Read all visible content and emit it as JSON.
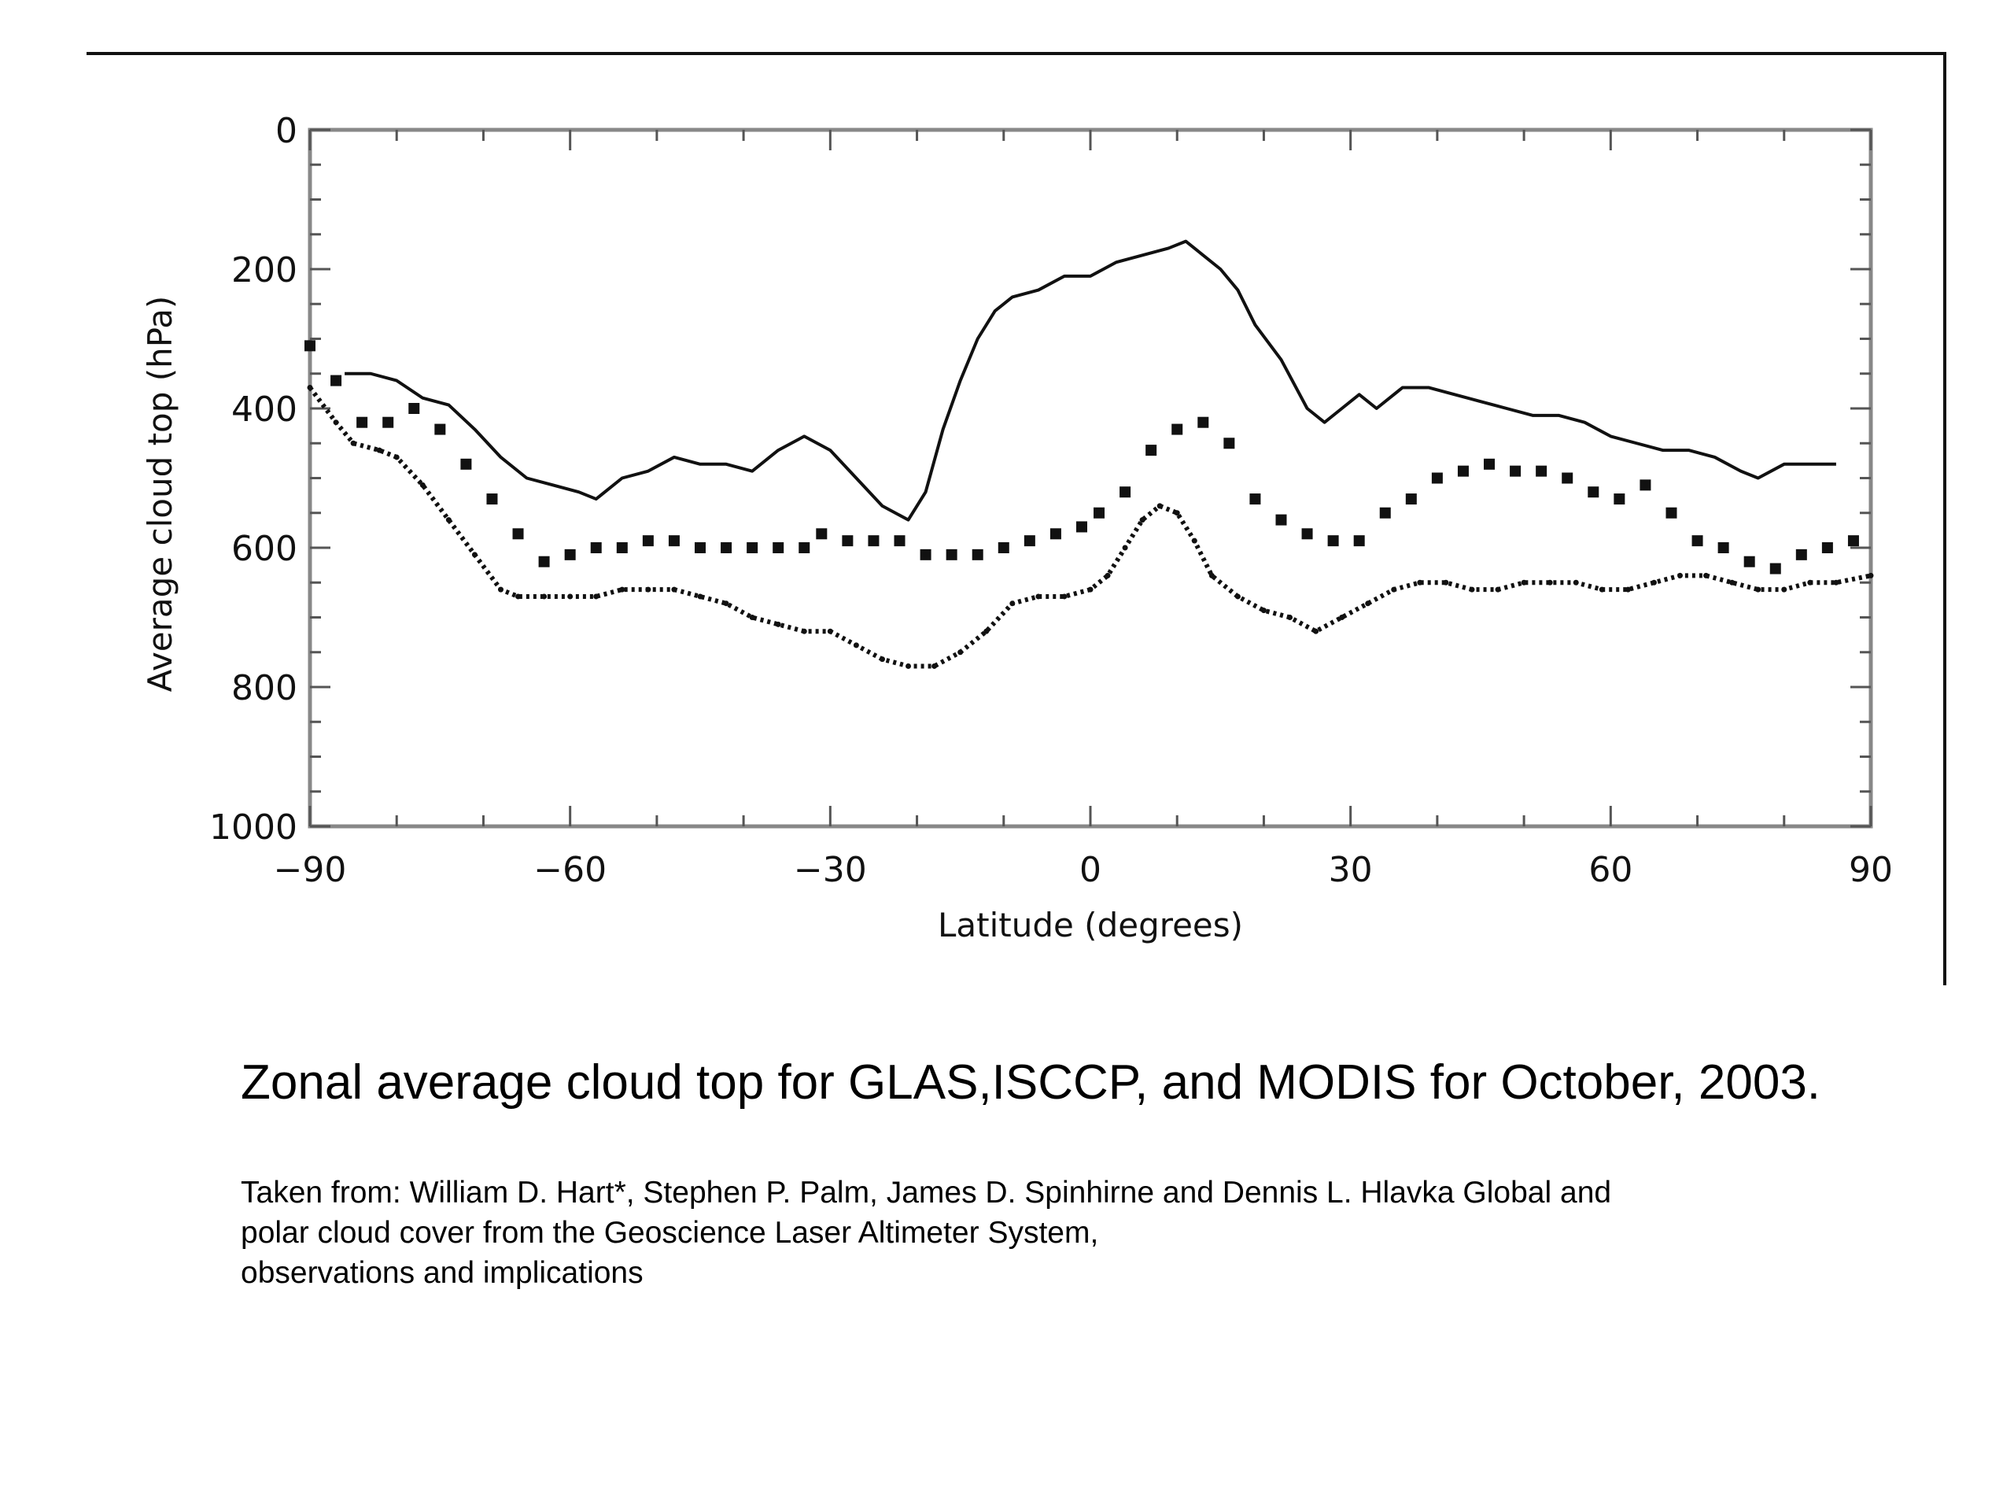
{
  "chart_data": {
    "type": "line",
    "xlabel": "Latitude (degrees)",
    "ylabel": "Average cloud top (hPa)",
    "xlim": [
      -90,
      90
    ],
    "ylim": [
      0,
      1000
    ],
    "y_inverted": true,
    "xticks": [
      -90,
      -60,
      -30,
      0,
      30,
      60,
      90
    ],
    "yticks": [
      0,
      200,
      400,
      600,
      800,
      1000
    ],
    "grid": false,
    "legend": "none",
    "series": [
      {
        "style": "solid",
        "x": [
          -86,
          -83,
          -80,
          -77,
          -74,
          -71,
          -68,
          -65,
          -62,
          -59,
          -57,
          -54,
          -51,
          -48,
          -45,
          -42,
          -39,
          -36,
          -33,
          -30,
          -27,
          -24,
          -21,
          -19,
          -17,
          -15,
          -13,
          -11,
          -9,
          -6,
          -3,
          0,
          3,
          6,
          9,
          11,
          13,
          15,
          17,
          19,
          22,
          25,
          27,
          29,
          31,
          33,
          36,
          39,
          42,
          45,
          48,
          51,
          54,
          57,
          60,
          63,
          66,
          69,
          72,
          75,
          77,
          80,
          83,
          86
        ],
        "y": [
          350,
          350,
          360,
          385,
          395,
          430,
          470,
          500,
          510,
          520,
          530,
          500,
          490,
          470,
          480,
          480,
          490,
          460,
          440,
          460,
          500,
          540,
          560,
          520,
          430,
          360,
          300,
          260,
          240,
          230,
          210,
          210,
          190,
          180,
          170,
          160,
          180,
          200,
          230,
          280,
          330,
          400,
          420,
          400,
          380,
          400,
          370,
          370,
          380,
          390,
          400,
          410,
          410,
          420,
          440,
          450,
          460,
          460,
          470,
          490,
          500,
          480,
          480,
          480
        ]
      },
      {
        "style": "square-markers",
        "x": [
          -90,
          -87,
          -84,
          -81,
          -78,
          -75,
          -72,
          -69,
          -66,
          -63,
          -60,
          -57,
          -54,
          -51,
          -48,
          -45,
          -42,
          -39,
          -36,
          -33,
          -31,
          -28,
          -25,
          -22,
          -19,
          -16,
          -13,
          -10,
          -7,
          -4,
          -1,
          1,
          4,
          7,
          10,
          13,
          16,
          19,
          22,
          25,
          28,
          31,
          34,
          37,
          40,
          43,
          46,
          49,
          52,
          55,
          58,
          61,
          64,
          67,
          70,
          73,
          76,
          79,
          82,
          85,
          88
        ],
        "y": [
          310,
          360,
          420,
          420,
          400,
          430,
          480,
          530,
          580,
          620,
          610,
          600,
          600,
          590,
          590,
          600,
          600,
          600,
          600,
          600,
          580,
          590,
          590,
          590,
          610,
          610,
          610,
          600,
          590,
          580,
          570,
          550,
          520,
          460,
          430,
          420,
          450,
          530,
          560,
          580,
          590,
          590,
          550,
          530,
          500,
          490,
          480,
          490,
          490,
          500,
          520,
          530,
          510,
          550,
          590,
          600,
          620,
          630,
          610,
          600,
          590
        ]
      },
      {
        "style": "dotted",
        "x": [
          -90,
          -87,
          -85,
          -82,
          -80,
          -77,
          -74,
          -71,
          -68,
          -66,
          -63,
          -60,
          -57,
          -54,
          -51,
          -48,
          -45,
          -42,
          -39,
          -36,
          -33,
          -30,
          -27,
          -24,
          -21,
          -18,
          -15,
          -12,
          -9,
          -6,
          -3,
          0,
          2,
          4,
          6,
          8,
          10,
          12,
          14,
          17,
          20,
          23,
          26,
          29,
          32,
          35,
          38,
          41,
          44,
          47,
          50,
          53,
          56,
          59,
          62,
          65,
          68,
          71,
          74,
          77,
          80,
          83,
          86,
          90
        ],
        "y": [
          370,
          420,
          450,
          460,
          470,
          510,
          560,
          610,
          660,
          670,
          670,
          670,
          670,
          660,
          660,
          660,
          670,
          680,
          700,
          710,
          720,
          720,
          740,
          760,
          770,
          770,
          750,
          720,
          680,
          670,
          670,
          660,
          640,
          600,
          560,
          540,
          550,
          590,
          640,
          670,
          690,
          700,
          720,
          700,
          680,
          660,
          650,
          650,
          660,
          660,
          650,
          650,
          650,
          660,
          660,
          650,
          640,
          640,
          650,
          660,
          660,
          650,
          650,
          640
        ]
      }
    ]
  },
  "caption": "Zonal average cloud top for GLAS,ISCCP, and MODIS for October, 2003.",
  "source": {
    "line1": "Taken from: William D. Hart*, Stephen P. Palm, James D. Spinhirne and Dennis L. Hlavka Global and",
    "line2": "polar cloud cover from the Geoscience Laser Altimeter System,",
    "line3": "observations and implications"
  }
}
